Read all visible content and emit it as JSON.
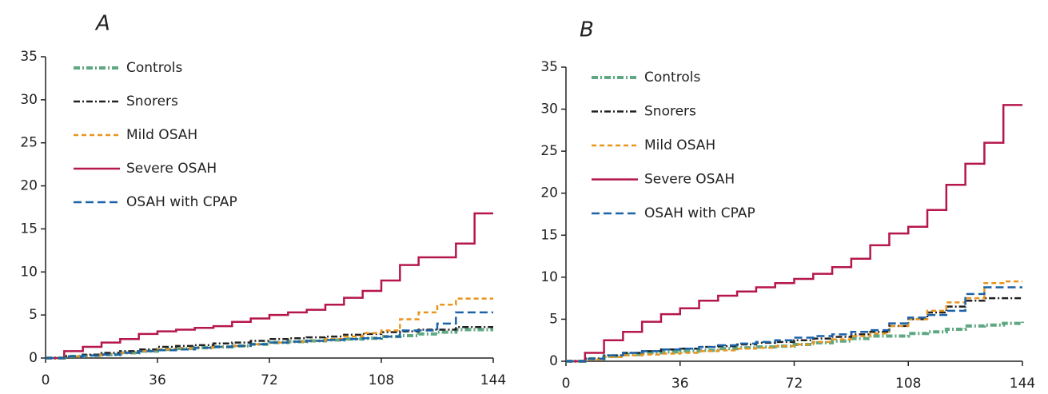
{
  "chart_data": [
    {
      "type": "line",
      "title": "A",
      "step": true,
      "xlim": [
        0,
        144
      ],
      "xticks": [
        0,
        36,
        72,
        108,
        144
      ],
      "ylim": [
        0,
        35
      ],
      "yticks": [
        0,
        5,
        10,
        15,
        20,
        25,
        30,
        35
      ],
      "x": [
        0,
        6,
        12,
        18,
        24,
        30,
        36,
        42,
        48,
        54,
        60,
        66,
        72,
        78,
        84,
        90,
        96,
        102,
        108,
        114,
        120,
        126,
        132,
        138,
        144
      ],
      "series": [
        {
          "name": "Controls",
          "color": "#5fa882",
          "dash": "dashdot",
          "values": [
            0,
            0.2,
            0.3,
            0.4,
            0.6,
            0.8,
            1.0,
            1.1,
            1.2,
            1.3,
            1.4,
            1.6,
            1.8,
            1.9,
            2.0,
            2.1,
            2.2,
            2.3,
            2.5,
            2.6,
            2.8,
            3.0,
            3.3,
            3.3,
            3.3
          ]
        },
        {
          "name": "Snorers",
          "color": "#222222",
          "dash": "dashdot",
          "values": [
            0,
            0.2,
            0.4,
            0.6,
            0.8,
            1.0,
            1.3,
            1.4,
            1.5,
            1.7,
            1.8,
            2.0,
            2.2,
            2.3,
            2.4,
            2.5,
            2.7,
            2.8,
            3.0,
            3.1,
            3.3,
            3.3,
            3.6,
            3.6,
            3.6
          ]
        },
        {
          "name": "Mild OSAH",
          "color": "#e8951e",
          "dash": "dashed",
          "values": [
            0,
            0.2,
            0.3,
            0.4,
            0.6,
            0.8,
            1.0,
            1.1,
            1.2,
            1.3,
            1.4,
            1.6,
            1.8,
            1.9,
            2.0,
            2.2,
            2.5,
            2.9,
            3.2,
            4.5,
            5.3,
            6.2,
            6.9,
            6.9,
            6.9
          ]
        },
        {
          "name": "Severe OSAH",
          "color": "#b5174a",
          "dash": "solid",
          "values": [
            0,
            0.8,
            1.3,
            1.8,
            2.2,
            2.8,
            3.1,
            3.3,
            3.5,
            3.7,
            4.2,
            4.6,
            5.0,
            5.3,
            5.6,
            6.2,
            7.0,
            7.8,
            9.0,
            10.8,
            11.7,
            11.7,
            13.3,
            16.8,
            16.8
          ]
        },
        {
          "name": "OSAH with CPAP",
          "color": "#1b62a8",
          "dash": "longdash",
          "values": [
            0,
            0.2,
            0.3,
            0.4,
            0.6,
            0.8,
            0.9,
            1.0,
            1.2,
            1.3,
            1.4,
            1.6,
            1.8,
            1.9,
            2.0,
            2.1,
            2.2,
            2.3,
            2.5,
            3.2,
            3.2,
            4.0,
            5.3,
            5.3,
            5.3
          ]
        }
      ]
    },
    {
      "type": "line",
      "title": "B",
      "step": true,
      "xlim": [
        0,
        144
      ],
      "xticks": [
        0,
        36,
        72,
        108,
        144
      ],
      "ylim": [
        0,
        35
      ],
      "yticks": [
        0,
        5,
        10,
        15,
        20,
        25,
        30,
        35
      ],
      "x": [
        0,
        6,
        12,
        18,
        24,
        30,
        36,
        42,
        48,
        54,
        60,
        66,
        72,
        78,
        84,
        90,
        96,
        102,
        108,
        114,
        120,
        126,
        132,
        138,
        144
      ],
      "series": [
        {
          "name": "Controls",
          "color": "#5fa882",
          "dash": "dashdot",
          "values": [
            0,
            0.3,
            0.6,
            0.8,
            1.0,
            1.1,
            1.2,
            1.3,
            1.5,
            1.6,
            1.7,
            1.8,
            2.0,
            2.2,
            2.4,
            2.7,
            3.0,
            3.0,
            3.3,
            3.5,
            3.8,
            4.2,
            4.3,
            4.5,
            4.7
          ]
        },
        {
          "name": "Snorers",
          "color": "#222222",
          "dash": "dashdot",
          "values": [
            0,
            0.3,
            0.7,
            1.0,
            1.2,
            1.4,
            1.5,
            1.7,
            1.8,
            2.0,
            2.2,
            2.3,
            2.5,
            2.7,
            2.9,
            3.2,
            3.5,
            4.2,
            5.0,
            5.8,
            6.5,
            7.2,
            7.5,
            7.5,
            7.5
          ]
        },
        {
          "name": "Mild OSAH",
          "color": "#e8951e",
          "dash": "dashed",
          "values": [
            0,
            0.2,
            0.5,
            0.7,
            0.8,
            0.9,
            1.0,
            1.2,
            1.3,
            1.5,
            1.6,
            1.8,
            2.0,
            2.3,
            2.6,
            3.0,
            3.3,
            4.2,
            5.0,
            6.0,
            7.0,
            7.5,
            9.3,
            9.5,
            9.5
          ]
        },
        {
          "name": "Severe OSAH",
          "color": "#b5174a",
          "dash": "solid",
          "values": [
            0,
            1.0,
            2.5,
            3.5,
            4.7,
            5.6,
            6.3,
            7.2,
            7.8,
            8.3,
            8.8,
            9.3,
            9.8,
            10.4,
            11.2,
            12.2,
            13.8,
            15.2,
            16.0,
            18.0,
            21.0,
            23.5,
            26.0,
            30.5,
            30.5
          ]
        },
        {
          "name": "OSAH with CPAP",
          "color": "#1b62a8",
          "dash": "longdash",
          "values": [
            0,
            0.3,
            0.7,
            1.0,
            1.2,
            1.4,
            1.5,
            1.7,
            1.9,
            2.1,
            2.3,
            2.5,
            2.8,
            3.0,
            3.2,
            3.5,
            3.7,
            4.5,
            5.2,
            5.5,
            6.0,
            8.0,
            8.8,
            8.8,
            8.8
          ]
        }
      ]
    }
  ]
}
